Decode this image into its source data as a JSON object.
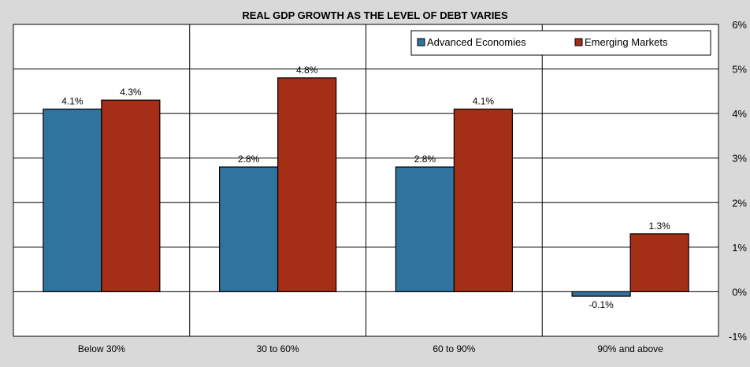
{
  "chart_data": {
    "type": "bar",
    "title": "REAL GDP GROWTH AS THE LEVEL OF DEBT VARIES",
    "categories": [
      "Below 30%",
      "30 to 60%",
      "60 to 90%",
      "90% and above"
    ],
    "series": [
      {
        "name": "Advanced Economies",
        "color": "#31739f",
        "values": [
          4.1,
          2.8,
          2.8,
          -0.1
        ]
      },
      {
        "name": "Emerging Markets",
        "color": "#a52f16",
        "values": [
          4.3,
          4.8,
          4.1,
          1.3
        ]
      }
    ],
    "data_labels": [
      [
        "4.1%",
        "2.8%",
        "2.8%",
        "-0.1%"
      ],
      [
        "4.3%",
        "4.8%",
        "4.1%",
        "1.3%"
      ]
    ],
    "y_ticks": [
      -1,
      0,
      1,
      2,
      3,
      4,
      5,
      6
    ],
    "y_tick_labels": [
      "-1%",
      "0%",
      "1%",
      "2%",
      "3%",
      "4%",
      "5%",
      "6%"
    ],
    "ylim": [
      -1,
      6
    ],
    "y_axis_side": "right",
    "grid": true,
    "legend_position": "top-right",
    "xlabel": "",
    "ylabel": ""
  }
}
